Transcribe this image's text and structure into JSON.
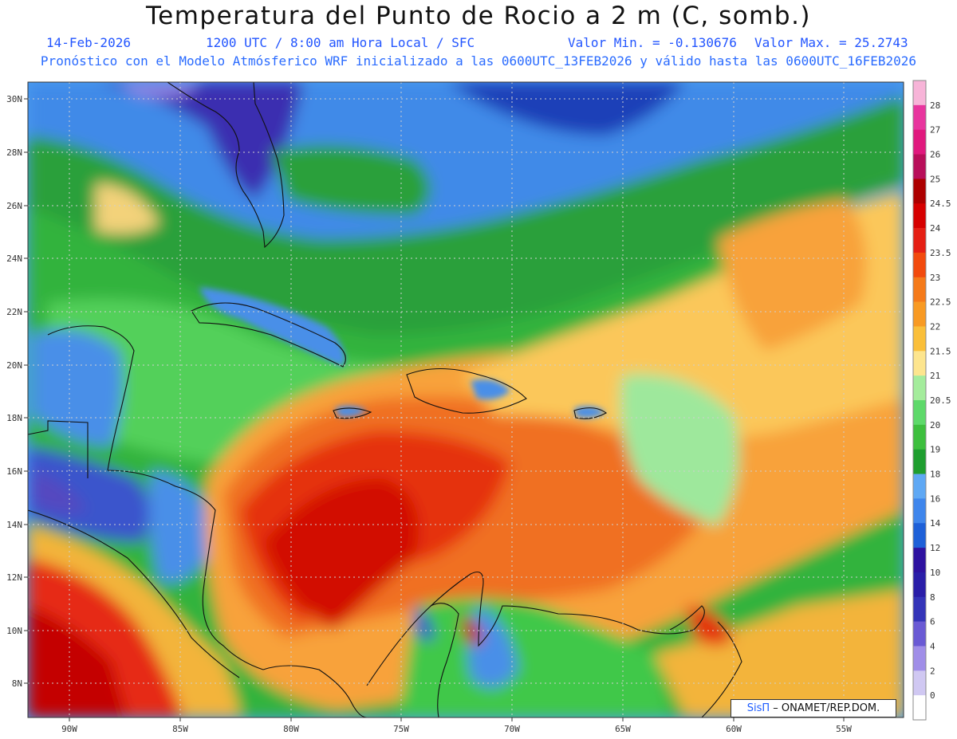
{
  "header": {
    "title": "Temperatura del Punto de Rocio a 2 m (C, somb.)",
    "date": "14-Feb-2026",
    "time": "1200 UTC / 8:00 am Hora Local / SFC",
    "min": "Valor Min. = -0.130676",
    "max": "Valor Max. = 25.2743",
    "model": "Pronóstico con el Modelo Atmósferico WRF inicializado a las 0600UTC_13FEB2026 y válido hasta las  0600UTC_16FEB2026"
  },
  "map": {
    "lat_labels": [
      "30N",
      "28N",
      "26N",
      "24N",
      "22N",
      "20N",
      "18N",
      "16N",
      "14N",
      "12N",
      "10N",
      "8N"
    ],
    "lon_labels": [
      "90W",
      "85W",
      "80W",
      "75W",
      "70W",
      "65W",
      "60W",
      "55W"
    ],
    "lat_range": [
      6.7,
      30.6
    ],
    "lon_range": [
      -92.0,
      -52.6
    ]
  },
  "legend": {
    "levels": [
      "0",
      "2",
      "4",
      "6",
      "8",
      "10",
      "12",
      "14",
      "16",
      "18",
      "19",
      "20",
      "20.5",
      "21",
      "21.5",
      "22",
      "22.5",
      "23",
      "23.5",
      "24",
      "24.5",
      "25",
      "26",
      "27",
      "28"
    ],
    "colors": [
      "#f7b4d8",
      "#e8359e",
      "#e0197e",
      "#b80f5a",
      "#ad0000",
      "#d60000",
      "#e51f14",
      "#f24a0d",
      "#f57a1a",
      "#f89a23",
      "#fabf3a",
      "#fde58e",
      "#a4ec9c",
      "#5ed96a",
      "#3ebf3e",
      "#1f9e2f",
      "#5fa8f4",
      "#3f86ec",
      "#1e60d8",
      "#2e12a0",
      "#2a1ea8",
      "#3434b8",
      "#6a5ad4",
      "#a08ee8",
      "#d0c8f2",
      "#ffffff"
    ]
  },
  "credit": {
    "brand": "SisΠ",
    "org": "– ONAMET/REP.DOM."
  }
}
